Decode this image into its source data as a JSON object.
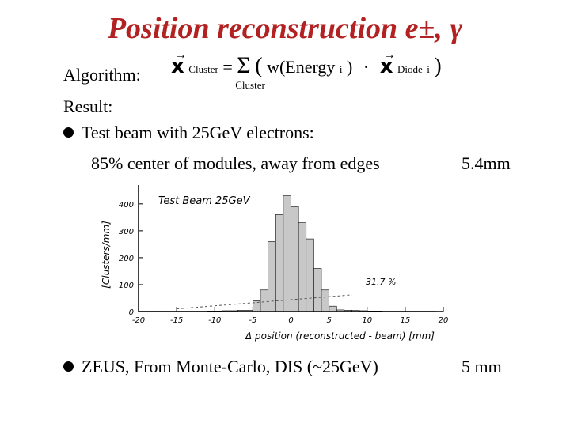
{
  "title": "Position reconstruction e±, γ",
  "algorithm": {
    "label": "Algorithm:",
    "x_symbol": "x",
    "cluster_sub": "Cluster",
    "equals": "=",
    "sum": "Σ",
    "sum_sub": "Cluster",
    "open_paren": "(",
    "weight": "w(Energy",
    "i_sub": "i",
    "close_inner": ")",
    "dot": "·",
    "diode_sub": "Diode",
    "i_sub2": "i",
    "close_paren": ")"
  },
  "result_label": "Result:",
  "bullets": [
    {
      "text": "Test beam with 25GeV electrons:",
      "sub": "85% center of modules, away from edges",
      "value": "5.4mm"
    },
    {
      "text": "ZEUS, From Monte-Carlo, DIS (~25GeV)",
      "value": "5 mm"
    }
  ],
  "chart_data": {
    "type": "bar",
    "title": "Test Beam 25GeV",
    "xlabel": "Δ position (reconstructed - beam) [mm]",
    "ylabel": "[Clusters/mm]",
    "xlim": [
      -20,
      20
    ],
    "ylim": [
      0,
      470
    ],
    "xticks": [
      -20,
      -15,
      -10,
      -5,
      0,
      5,
      10,
      15,
      20
    ],
    "yticks": [
      0,
      100,
      200,
      300,
      400
    ],
    "bin_width": 1,
    "x": [
      -20,
      -19,
      -18,
      -17,
      -16,
      -15,
      -14,
      -13,
      -12,
      -11,
      -10,
      -9,
      -8,
      -7,
      -6,
      -5,
      -4,
      -3,
      -2,
      -1,
      0,
      1,
      2,
      3,
      4,
      5,
      6,
      7,
      8,
      9,
      10,
      11,
      12,
      13,
      14,
      15,
      16,
      17,
      18,
      19
    ],
    "values": [
      1,
      1,
      1,
      1,
      1,
      1,
      1,
      1,
      1,
      2,
      2,
      3,
      3,
      5,
      5,
      40,
      80,
      260,
      360,
      430,
      390,
      330,
      270,
      160,
      80,
      20,
      6,
      5,
      4,
      3,
      2,
      2,
      1,
      1,
      1,
      1,
      1,
      1,
      1,
      0
    ],
    "annotation": "31,7 %",
    "colors": {
      "bars": "#c8c8c8",
      "outline": "#000000"
    }
  }
}
